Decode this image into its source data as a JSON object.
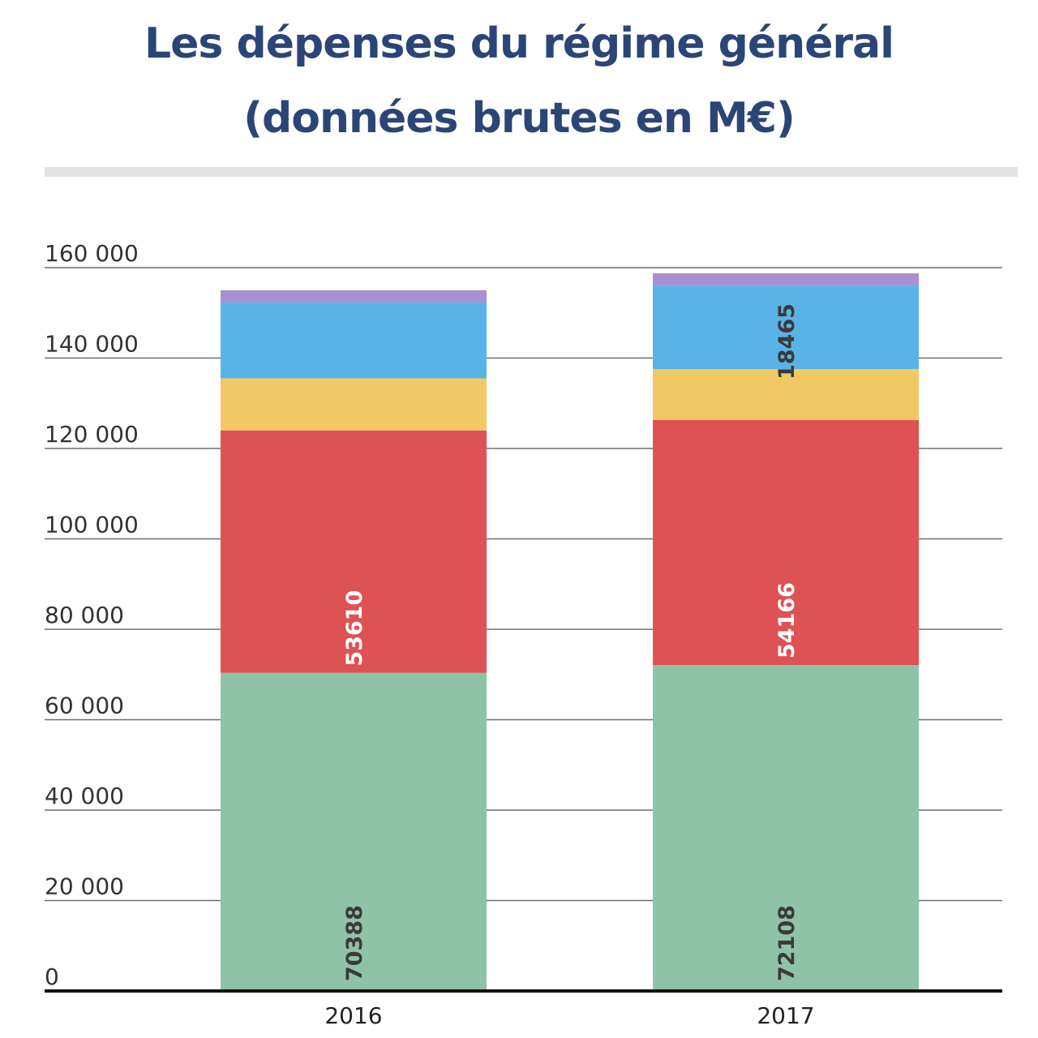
{
  "chart_data": {
    "type": "bar",
    "stacked": true,
    "title": "Les dépenses du régime général (données brutes en M€)",
    "title_lines": [
      "Les dépenses du régime général",
      "(données brutes en M€)"
    ],
    "categories": [
      "2016",
      "2017"
    ],
    "ylim": [
      0,
      160000
    ],
    "yticks": [
      0,
      20000,
      40000,
      60000,
      80000,
      100000,
      120000,
      140000,
      160000
    ],
    "ytick_labels": [
      "0",
      "20 000",
      "40 000",
      "60 000",
      "80 000",
      "100 000",
      "120 000",
      "140 000",
      "160 000"
    ],
    "grid": true,
    "legend": "none",
    "series": [
      {
        "values": [
          70388,
          72108
        ],
        "color": "#8fc3a8",
        "labels": [
          "70388",
          "72108"
        ],
        "label_color": "#3a3a3a"
      },
      {
        "values": [
          53610,
          54166
        ],
        "color": "#de5254",
        "labels": [
          "53610",
          "54166"
        ],
        "label_color": "#ffffff"
      },
      {
        "values": [
          11500,
          11300
        ],
        "color": "#f2c864",
        "labels": [
          "",
          ""
        ],
        "label_color": "#3a3a3a"
      },
      {
        "values": [
          16800,
          18465
        ],
        "color": "#5ab3e6",
        "labels": [
          "",
          "18465"
        ],
        "label_color": "#3a3a3a"
      },
      {
        "values": [
          2700,
          2700
        ],
        "color": "#a98fd2",
        "labels": [
          "",
          ""
        ],
        "label_color": "#3a3a3a"
      }
    ]
  }
}
